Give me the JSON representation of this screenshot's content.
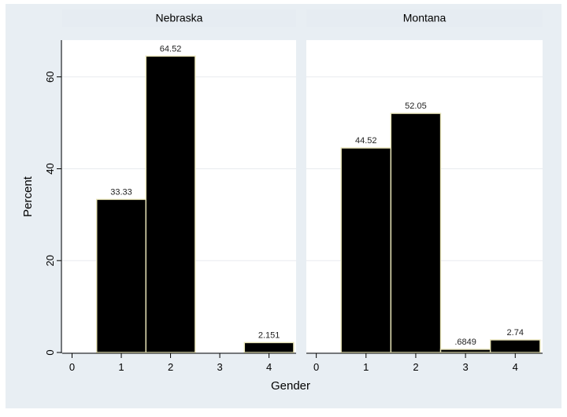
{
  "chart_data": {
    "type": "bar",
    "ylabel": "Percent",
    "xlabel": "Gender",
    "ylim": [
      0,
      68
    ],
    "xlim": [
      -0.2,
      4.55
    ],
    "yticks": [
      0,
      20,
      40,
      60
    ],
    "xticks": [
      0,
      1,
      2,
      3,
      4
    ],
    "grid": true,
    "bar_color": "#000000",
    "bar_edge_color": "#e8e4b8",
    "panel_header_color": "#e6ecf2",
    "outer_background": "#e8eef3",
    "panels": [
      {
        "name": "Nebraska",
        "bars": [
          {
            "x": 1,
            "value": 33.33,
            "label": "33.33"
          },
          {
            "x": 2,
            "value": 64.52,
            "label": "64.52"
          },
          {
            "x": 4,
            "value": 2.151,
            "label": "2.151"
          }
        ]
      },
      {
        "name": "Montana",
        "bars": [
          {
            "x": 1,
            "value": 44.52,
            "label": "44.52"
          },
          {
            "x": 2,
            "value": 52.05,
            "label": "52.05"
          },
          {
            "x": 3,
            "value": 0.6849,
            "label": ".6849"
          },
          {
            "x": 4,
            "value": 2.74,
            "label": "2.74"
          }
        ]
      }
    ]
  }
}
